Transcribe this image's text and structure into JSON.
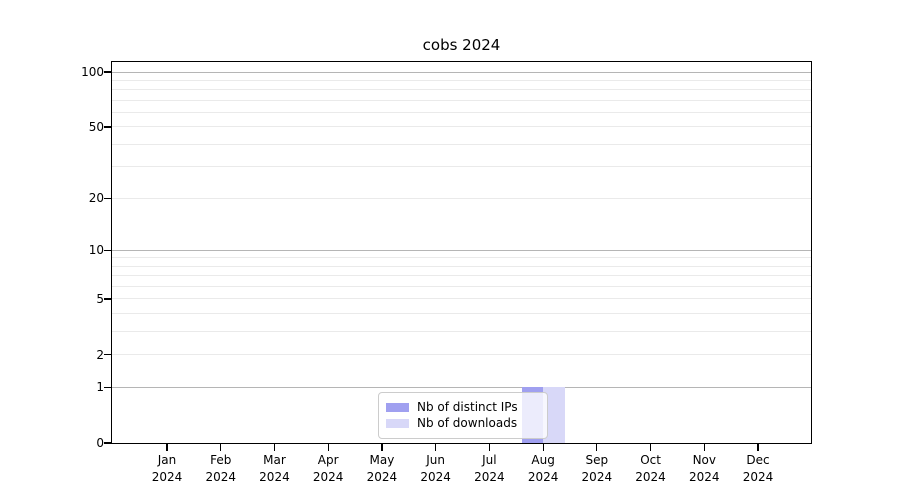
{
  "chart_data": {
    "type": "bar",
    "title": "cobs 2024",
    "xlabel": "",
    "ylabel": "",
    "categories": [
      "Jan 2024",
      "Feb 2024",
      "Mar 2024",
      "Apr 2024",
      "May 2024",
      "Jun 2024",
      "Jul 2024",
      "Aug 2024",
      "Sep 2024",
      "Oct 2024",
      "Nov 2024",
      "Dec 2024"
    ],
    "series": [
      {
        "name": "Nb of distinct IPs",
        "color": "#a0a0f0",
        "values": [
          0,
          0,
          0,
          0,
          0,
          0,
          0,
          1,
          0,
          0,
          0,
          0
        ]
      },
      {
        "name": "Nb of downloads",
        "color": "#d8d8f8",
        "values": [
          0,
          0,
          0,
          0,
          0,
          0,
          0,
          1,
          0,
          0,
          0,
          0
        ]
      }
    ],
    "yscale": "log1p",
    "ylim": [
      0,
      113
    ],
    "yticks": [
      0,
      1,
      2,
      5,
      10,
      20,
      50,
      100
    ],
    "gridlines": {
      "major": [
        1,
        10,
        100
      ],
      "minor": [
        2,
        3,
        4,
        5,
        6,
        7,
        8,
        9,
        20,
        30,
        40,
        50,
        60,
        70,
        80,
        90
      ]
    },
    "grid": true,
    "legend_position": "lower center",
    "colors": {
      "background": "#ffffff",
      "axis": "#000000",
      "major_grid": "#b5b5b5",
      "minor_grid": "#eaeaea",
      "legend_border": "#cccccc"
    }
  }
}
